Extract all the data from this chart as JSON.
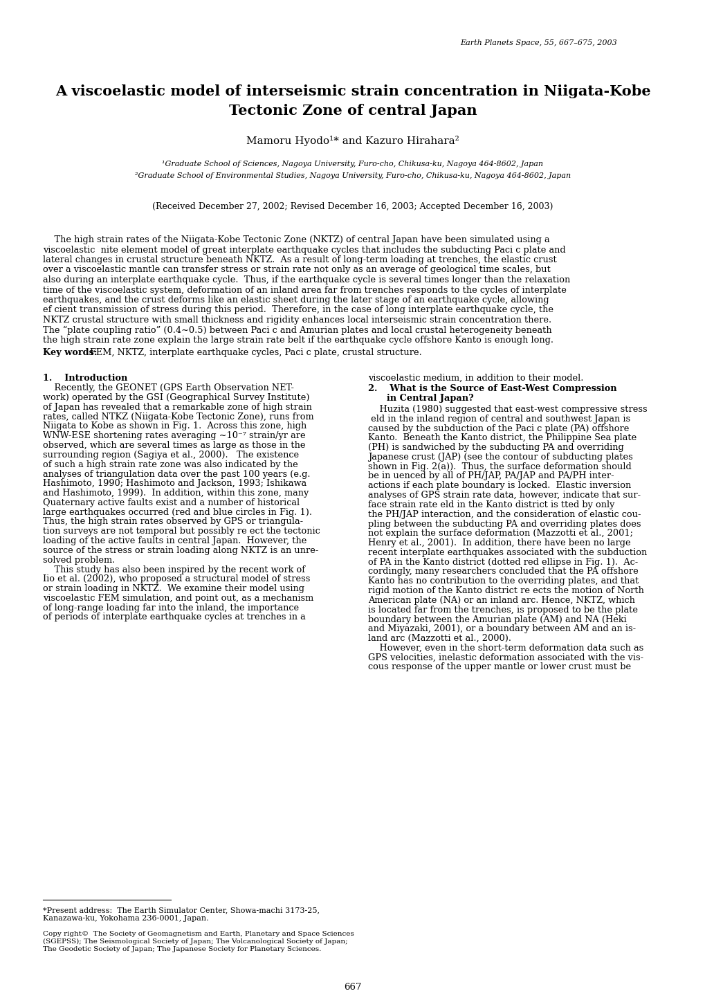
{
  "journal_line": "Earth Planets Space, 55, 667–675, 2003",
  "title_line1": "A viscoelastic model of interseismic strain concentration in Niigata-Kobe",
  "title_line2": "Tectonic Zone of central Japan",
  "authors": "Mamoru Hyodo¹* and Kazuro Hirahara²",
  "affil1": "¹Graduate School of Sciences, Nagoya University, Furo-cho, Chikusa-ku, Nagoya 464-8602, Japan",
  "affil2": "²Graduate School of Environmental Studies, Nagoya University, Furo-cho, Chikusa-ku, Nagoya 464-8602, Japan",
  "received": "(Received December 27, 2002; Revised December 16, 2003; Accepted December 16, 2003)",
  "abstract_lines": [
    "    The high strain rates of the Niigata-Kobe Tectonic Zone (NKTZ) of central Japan have been simulated using a",
    "viscoelastic  nite element model of great interplate earthquake cycles that includes the subducting Paci c plate and",
    "lateral changes in crustal structure beneath NKTZ.  As a result of long-term loading at trenches, the elastic crust",
    "over a viscoelastic mantle can transfer stress or strain rate not only as an average of geological time scales, but",
    "also during an interplate earthquake cycle.  Thus, if the earthquake cycle is several times longer than the relaxation",
    "time of the viscoelastic system, deformation of an inland area far from trenches responds to the cycles of interplate",
    "earthquakes, and the crust deforms like an elastic sheet during the later stage of an earthquake cycle, allowing",
    "ef cient transmission of stress during this period.  Therefore, in the case of long interplate earthquake cycle, the",
    "NKTZ crustal structure with small thickness and rigidity enhances local interseismic strain concentration there.",
    "The “plate coupling ratio” (0.4∼0.5) between Paci c and Amurian plates and local crustal heterogeneity beneath",
    "the high strain rate zone explain the large strain rate belt if the earthquake cycle offshore Kanto is enough long."
  ],
  "keywords_label": "Key words:",
  "keywords_text": "FEM, NKTZ, interplate earthquake cycles, Paci c plate, crustal structure.",
  "sec1_heading": "1.    Introduction",
  "sec1_lines": [
    "    Recently, the GEONET (GPS Earth Observation NET-",
    "work) operated by the GSI (Geographical Survey Institute)",
    "of Japan has revealed that a remarkable zone of high strain",
    "rates, called NTKZ (Niigata-Kobe Tectonic Zone), runs from",
    "Niigata to Kobe as shown in Fig. 1.  Across this zone, high",
    "WNW-ESE shortening rates averaging ∼10⁻⁷ strain/yr are",
    "observed, which are several times as large as those in the",
    "surrounding region (Sagiya et al., 2000).   The existence",
    "of such a high strain rate zone was also indicated by the",
    "analyses of triangulation data over the past 100 years (e.g.",
    "Hashimoto, 1990; Hashimoto and Jackson, 1993; Ishikawa",
    "and Hashimoto, 1999).  In addition, within this zone, many",
    "Quaternary active faults exist and a number of historical",
    "large earthquakes occurred (red and blue circles in Fig. 1).",
    "Thus, the high strain rates observed by GPS or triangula-",
    "tion surveys are not temporal but possibly re ect the tectonic",
    "loading of the active faults in central Japan.  However, the",
    "source of the stress or strain loading along NKTZ is an unre-",
    "solved problem.",
    "    This study has also been inspired by the recent work of",
    "Iio et al. (2002), who proposed a structural model of stress",
    "or strain loading in NKTZ.  We examine their model using",
    "viscoelastic FEM simulation, and point out, as a mechanism",
    "of long-range loading far into the inland, the importance",
    "of periods of interplate earthquake cycles at trenches in a"
  ],
  "sec1_col2_first": "viscoelastic medium, in addition to their model.",
  "sec2_heading1": "2.    What is the Source of East-West Compression",
  "sec2_heading2": "      in Central Japan?",
  "sec2_lines": [
    "    Huzita (1980) suggested that east-west compressive stress",
    " eld in the inland region of central and southwest Japan is",
    "caused by the subduction of the Paci c plate (PA) offshore",
    "Kanto.  Beneath the Kanto district, the Philippine Sea plate",
    "(PH) is sandwiched by the subducting PA and overriding",
    "Japanese crust (JAP) (see the contour of subducting plates",
    "shown in Fig. 2(a)).  Thus, the surface deformation should",
    "be in uenced by all of PH/JAP, PA/JAP and PA/PH inter-",
    "actions if each plate boundary is locked.  Elastic inversion",
    "analyses of GPS strain rate data, however, indicate that sur-",
    "face strain rate eld in the Kanto district is tted by only",
    "the PH/JAP interaction, and the consideration of elastic cou-",
    "pling between the subducting PA and overriding plates does",
    "not explain the surface deformation (Mazzotti et al., 2001;",
    "Henry et al., 2001).  In addition, there have been no large",
    "recent interplate earthquakes associated with the subduction",
    "of PA in the Kanto district (dotted red ellipse in Fig. 1).  Ac-",
    "cordingly, many researchers concluded that the PA offshore",
    "Kanto has no contribution to the overriding plates, and that",
    "rigid motion of the Kanto district re ects the motion of North",
    "American plate (NA) or an inland arc. Hence, NKTZ, which",
    "is located far from the trenches, is proposed to be the plate",
    "boundary between the Amurian plate (AM) and NA (Heki",
    "and Miyazaki, 2001), or a boundary between AM and an is-",
    "land arc (Mazzotti et al., 2000).",
    "    However, even in the short-term deformation data such as",
    "GPS velocities, inelastic deformation associated with the vis-",
    "cous response of the upper mantle or lower crust must be"
  ],
  "footnote_line1": "*Present address:  The Earth Simulator Center, Showa-machi 3173-25,",
  "footnote_line2": "Kanazawa-ku, Yokohama 236-0001, Japan.",
  "copyright_lines": [
    "Copy right©  The Society of Geomagnetism and Earth, Planetary and Space Sciences",
    "(SGEPSS); The Seismological Society of Japan; The Volcanological Society of Japan;",
    "The Geodetic Society of Japan; The Japanese Society for Planetary Sciences."
  ],
  "page_number": "667",
  "bg": "#ffffff"
}
